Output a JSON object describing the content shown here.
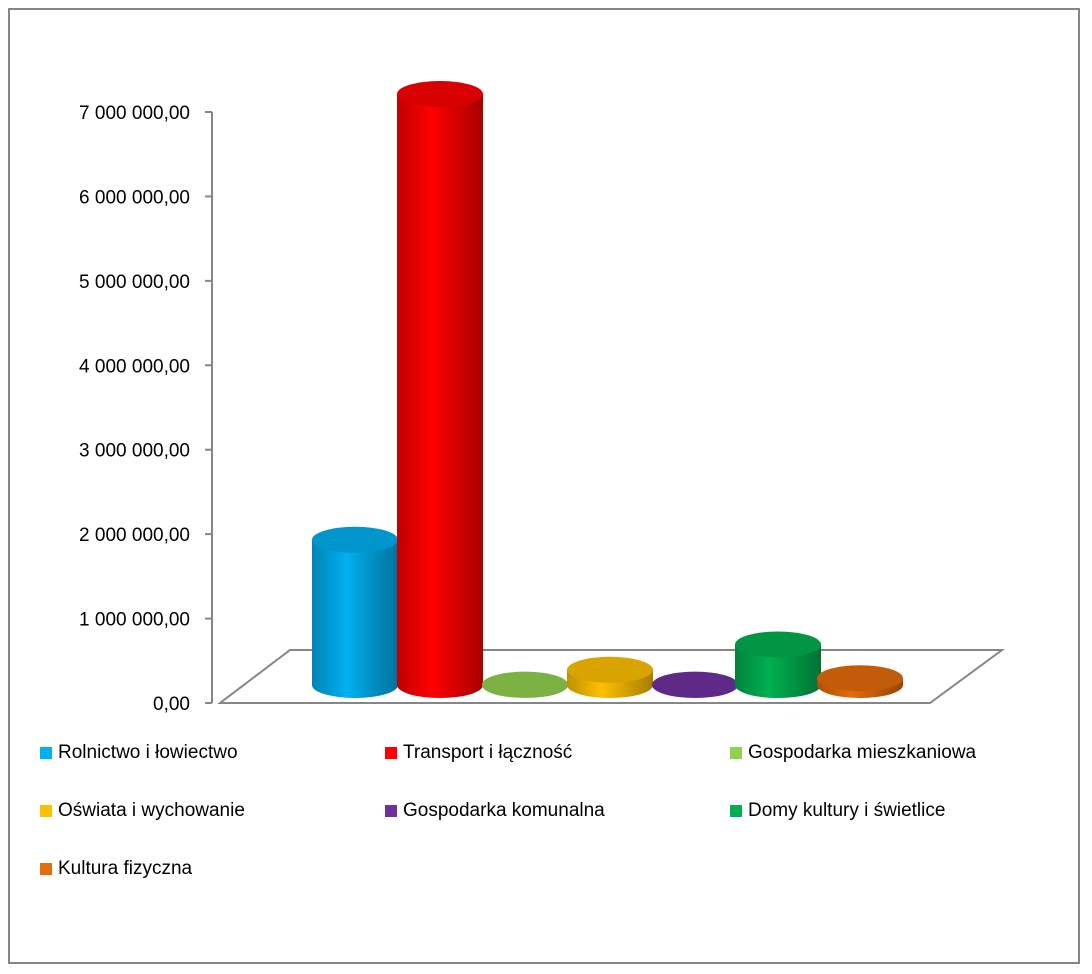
{
  "chart_data": {
    "type": "bar",
    "style": "3d-cylinder",
    "grid": false,
    "legend_position": "bottom",
    "ylim": [
      0,
      7000000
    ],
    "y_ticks": [
      0,
      1000000,
      2000000,
      3000000,
      4000000,
      5000000,
      6000000,
      7000000
    ],
    "y_tick_labels": [
      "0,00",
      "1 000 000,00",
      "2 000 000,00",
      "3 000 000,00",
      "4 000 000,00",
      "5 000 000,00",
      "6 000 000,00",
      "7 000 000,00"
    ],
    "series": [
      {
        "name": "Rolnictwo i łowiectwo",
        "value": 1720000,
        "color": "#00B0F0"
      },
      {
        "name": "Transport i łączność",
        "value": 7000000,
        "color": "#FF0000"
      },
      {
        "name": "Gospodarka mieszkaniowa",
        "value": 5000,
        "color": "#92D050"
      },
      {
        "name": "Oświata i wychowanie",
        "value": 180000,
        "color": "#FFC000"
      },
      {
        "name": "Gospodarka komunalna",
        "value": 5000,
        "color": "#7030A0"
      },
      {
        "name": "Domy kultury i świetlice",
        "value": 480000,
        "color": "#00B050"
      },
      {
        "name": "Kultura fizyczna",
        "value": 80000,
        "color": "#E46C0A"
      }
    ]
  }
}
